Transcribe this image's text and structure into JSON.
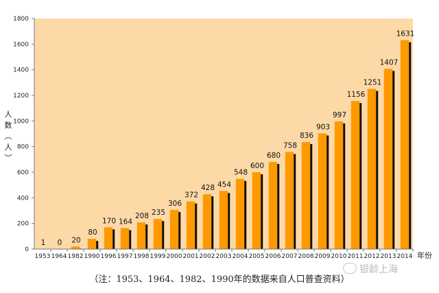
{
  "chart_data": {
    "type": "bar",
    "categories": [
      "1953",
      "1964",
      "1982",
      "1990",
      "1996",
      "1997",
      "1998",
      "1999",
      "2000",
      "2001",
      "2002",
      "2003",
      "2004",
      "2005",
      "2006",
      "2007",
      "2008",
      "2009",
      "2010",
      "2011",
      "2012",
      "2013",
      "2014"
    ],
    "values": [
      1,
      0,
      20,
      80,
      170,
      164,
      208,
      235,
      306,
      372,
      428,
      454,
      548,
      600,
      680,
      758,
      836,
      903,
      997,
      1156,
      1251,
      1407,
      1631
    ],
    "ylim": [
      0,
      1800
    ],
    "yticks": [
      0,
      200,
      400,
      600,
      800,
      1000,
      1200,
      1400,
      1600,
      1800
    ],
    "ylabel": "人数（人）",
    "xlabel": "年份",
    "grid": false,
    "colors": {
      "plot_bg": "#FDD9A8",
      "bar": "#FF9900",
      "bar_shadow": "#111111"
    }
  },
  "note": "（注：1953、1964、1982、1990年的数据来自人口普查资料）",
  "watermark": "银龄上海"
}
